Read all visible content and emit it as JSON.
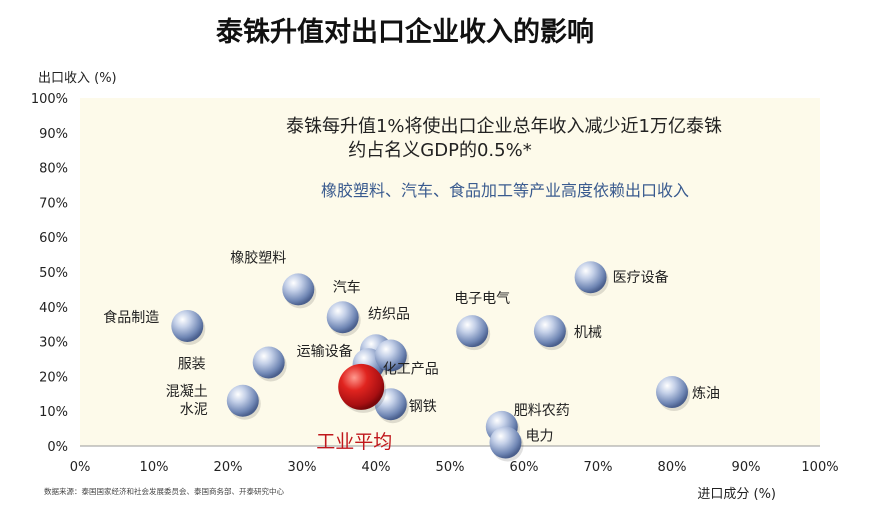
{
  "chart_data": {
    "type": "scatter",
    "title": "泰铢升值对出口企业收入的影响",
    "xlabel": "进口成分 (%)",
    "ylabel": "出口收入 (%)",
    "xlim": [
      0,
      100
    ],
    "ylim": [
      0,
      100
    ],
    "x_ticks": [
      "0%",
      "10%",
      "20%",
      "30%",
      "40%",
      "50%",
      "60%",
      "70%",
      "80%",
      "90%",
      "100%"
    ],
    "y_ticks": [
      "0%",
      "10%",
      "20%",
      "30%",
      "40%",
      "50%",
      "60%",
      "70%",
      "80%",
      "90%",
      "100%"
    ],
    "grid": false,
    "annotations": [
      "泰铢每升值1%将使出口企业总年收入减少近1万亿泰铢",
      "约占名义GDP的0.5%*",
      "橡胶塑料、汽车、食品加工等产业高度依赖出口收入"
    ],
    "source": "数据来源：泰国国家经济和社会发展委员会、泰国商务部、开泰研究中心",
    "points": [
      {
        "label": "食品制造",
        "x": 14.5,
        "y": 34.5
      },
      {
        "label": "橡胶塑料",
        "x": 29.5,
        "y": 45
      },
      {
        "label": "汽车",
        "x": 35.5,
        "y": 37
      },
      {
        "label": "服装",
        "x": 25.5,
        "y": 24
      },
      {
        "label": "混凝土\n水泥",
        "x": 22,
        "y": 13
      },
      {
        "label": "纺织品",
        "x": 40,
        "y": 27.5
      },
      {
        "label": "运输设备",
        "x": 39,
        "y": 23.5
      },
      {
        "label": "化工产品",
        "x": 42,
        "y": 26
      },
      {
        "label": "钢铁",
        "x": 42,
        "y": 12
      },
      {
        "label": "电子电气",
        "x": 53,
        "y": 33
      },
      {
        "label": "机械",
        "x": 63.5,
        "y": 33
      },
      {
        "label": "医疗设备",
        "x": 69,
        "y": 48.5
      },
      {
        "label": "肥料农药",
        "x": 57,
        "y": 5.5
      },
      {
        "label": "电力",
        "x": 57.5,
        "y": 1
      },
      {
        "label": "炼油",
        "x": 80,
        "y": 15.5
      },
      {
        "label": "工业平均",
        "x": 38,
        "y": 17,
        "highlight": true
      }
    ]
  },
  "colors": {
    "bubble": "#6f86b4",
    "highlight": "#c0171c",
    "plot_bg": "#fdfaea",
    "note_blue": "#3a5b8f"
  }
}
